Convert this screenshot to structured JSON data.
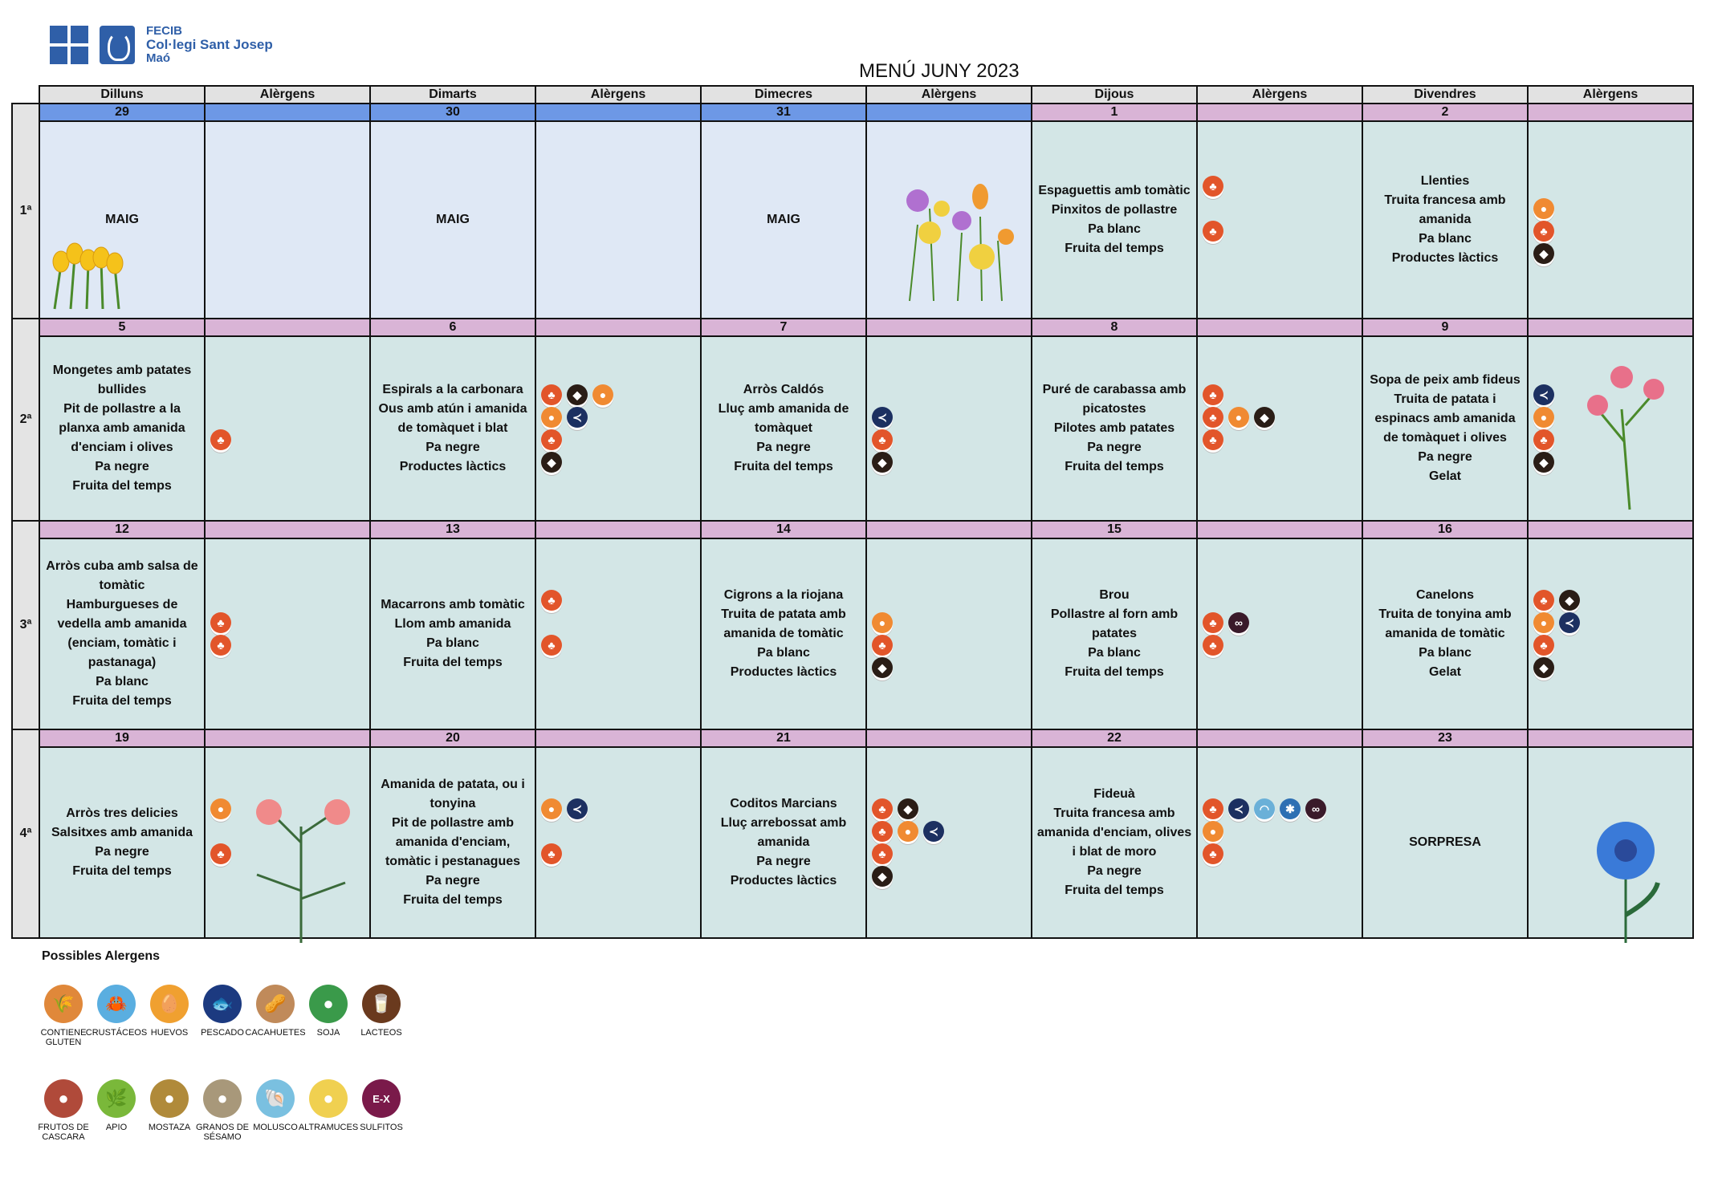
{
  "header": {
    "org": "FECIB",
    "school": "Col·legi Sant Josep",
    "town": "Maó",
    "title": "MENÚ JUNY 2023"
  },
  "columns": [
    "Dilluns",
    "Alèrgens",
    "Dimarts",
    "Alèrgens",
    "Dimecres",
    "Alèrgens",
    "Dijous",
    "Alèrgens",
    "Divendres",
    "Alèrgens"
  ],
  "weeks": [
    {
      "label": "1ª",
      "days": [
        {
          "num": "29",
          "month": "may",
          "dishes": [
            "MAIG"
          ],
          "allergens": []
        },
        {
          "num": "30",
          "month": "may",
          "dishes": [
            "MAIG"
          ],
          "allergens": []
        },
        {
          "num": "31",
          "month": "may",
          "dishes": [
            "MAIG"
          ],
          "allergens": []
        },
        {
          "num": "1",
          "month": "jun",
          "dishes": [
            "Espaguettis amb tomàtic",
            "Pinxitos de pollastre",
            "Pa blanc",
            "Fruita del temps"
          ],
          "allergens": [
            [
              "gluten"
            ],
            [],
            [
              "gluten"
            ],
            []
          ]
        },
        {
          "num": "2",
          "month": "jun",
          "dishes": [
            "Llenties",
            "Truita francesa amb amanida",
            "Pa blanc",
            "Productes làctics"
          ],
          "allergens": [
            [],
            [
              "huevos"
            ],
            [
              "gluten"
            ],
            [
              "lacteos"
            ]
          ]
        }
      ]
    },
    {
      "label": "2ª",
      "days": [
        {
          "num": "5",
          "month": "jun",
          "dishes": [
            "Mongetes amb patates bullides",
            "Pit de pollastre a la planxa amb amanida d'enciam i olives",
            "Pa negre",
            "Fruita del temps"
          ],
          "allergens": [
            [],
            [],
            [
              "gluten"
            ],
            []
          ]
        },
        {
          "num": "6",
          "month": "jun",
          "dishes": [
            "Espirals a la carbonara",
            "Ous amb atún i amanida de tomàquet i blat",
            "Pa negre",
            "Productes làctics"
          ],
          "allergens": [
            [
              "gluten",
              "lacteos",
              "huevos"
            ],
            [
              "huevos",
              "pescado"
            ],
            [
              "gluten"
            ],
            [
              "lacteos"
            ]
          ]
        },
        {
          "num": "7",
          "month": "jun",
          "dishes": [
            "Arròs Caldós",
            "Lluç amb amanida de tomàquet",
            "Pa negre",
            "Fruita del temps"
          ],
          "allergens": [
            [],
            [
              "pescado"
            ],
            [
              "gluten"
            ],
            [
              "lacteos"
            ]
          ]
        },
        {
          "num": "8",
          "month": "jun",
          "dishes": [
            "Puré de carabassa amb picatostes",
            "Pilotes amb patates",
            "Pa negre",
            "Fruita del temps"
          ],
          "allergens": [
            [
              "gluten"
            ],
            [
              "gluten",
              "huevos",
              "lacteos"
            ],
            [
              "gluten"
            ],
            []
          ]
        },
        {
          "num": "9",
          "month": "jun",
          "dishes": [
            "Sopa de peix amb fideus",
            "Truita de patata i espinacs amb amanida de tomàquet i olives",
            "Pa negre",
            "Gelat"
          ],
          "allergens": [
            [
              "pescado"
            ],
            [
              "huevos"
            ],
            [
              "gluten"
            ],
            [
              "lacteos"
            ]
          ]
        }
      ]
    },
    {
      "label": "3ª",
      "days": [
        {
          "num": "12",
          "month": "jun",
          "dishes": [
            "Arròs cuba amb salsa de tomàtic",
            "Hamburgueses de vedella amb amanida (enciam, tomàtic i pastanaga)",
            "Pa blanc",
            "Fruita del temps"
          ],
          "allergens": [
            [],
            [
              "gluten"
            ],
            [
              "gluten"
            ],
            []
          ]
        },
        {
          "num": "13",
          "month": "jun",
          "dishes": [
            "Macarrons amb tomàtic",
            "Llom amb amanida",
            "Pa blanc",
            "Fruita del temps"
          ],
          "allergens": [
            [
              "gluten"
            ],
            [],
            [
              "gluten"
            ],
            []
          ]
        },
        {
          "num": "14",
          "month": "jun",
          "dishes": [
            "Cigrons a la riojana",
            "Truita de patata amb amanida de tomàtic",
            "Pa blanc",
            "Productes làctics"
          ],
          "allergens": [
            [],
            [
              "huevos"
            ],
            [
              "gluten"
            ],
            [
              "lacteos"
            ]
          ]
        },
        {
          "num": "15",
          "month": "jun",
          "dishes": [
            "Brou",
            "Pollastre al forn amb patates",
            "Pa blanc",
            "Fruita del temps"
          ],
          "allergens": [
            [],
            [
              "gluten",
              "sulfitos"
            ],
            [
              "gluten"
            ],
            []
          ]
        },
        {
          "num": "16",
          "month": "jun",
          "dishes": [
            "Canelons",
            "Truita de tonyina amb amanida de tomàtic",
            "Pa blanc",
            "Gelat"
          ],
          "allergens": [
            [
              "gluten",
              "lacteos"
            ],
            [
              "huevos",
              "pescado"
            ],
            [
              "gluten"
            ],
            [
              "lacteos"
            ]
          ]
        }
      ]
    },
    {
      "label": "4ª",
      "days": [
        {
          "num": "19",
          "month": "jun",
          "dishes": [
            "Arròs tres delicies",
            "Salsitxes amb amanida",
            "Pa negre",
            "Fruita del temps"
          ],
          "allergens": [
            [
              "huevos"
            ],
            [],
            [
              "gluten"
            ],
            []
          ]
        },
        {
          "num": "20",
          "month": "jun",
          "dishes": [
            "Amanida de patata, ou i tonyina",
            "Pit de pollastre amb amanida d'enciam, tomàtic i pestanagues",
            "Pa negre",
            "Fruita del temps"
          ],
          "allergens": [
            [
              "huevos",
              "pescado"
            ],
            [],
            [
              "gluten"
            ],
            []
          ]
        },
        {
          "num": "21",
          "month": "jun",
          "dishes": [
            "Coditos Marcians",
            "Lluç arrebossat amb amanida",
            "Pa negre",
            "Productes làctics"
          ],
          "allergens": [
            [
              "gluten",
              "lacteos"
            ],
            [
              "gluten",
              "huevos",
              "pescado"
            ],
            [
              "gluten"
            ],
            [
              "lacteos"
            ]
          ]
        },
        {
          "num": "22",
          "month": "jun",
          "dishes": [
            "Fideuà",
            "Truita francesa amb amanida d'enciam, olives i blat de moro",
            "Pa negre",
            "Fruita del temps"
          ],
          "allergens": [
            [
              "gluten",
              "pescado",
              "molusco",
              "crustaceos",
              "sulfitos"
            ],
            [
              "huevos"
            ],
            [
              "gluten"
            ],
            []
          ]
        },
        {
          "num": "23",
          "month": "jun",
          "dishes": [
            "SORPRESA"
          ],
          "allergens": []
        }
      ]
    }
  ],
  "legend": {
    "title": "Possibles Alergens",
    "items": [
      {
        "key": "gluten",
        "label": "CONTIENE GLUTEN",
        "color": "#e0883a",
        "glyph": "🌾"
      },
      {
        "key": "crustaceos",
        "label": "CRUSTÁCEOS",
        "color": "#5aaee0",
        "glyph": "🦀"
      },
      {
        "key": "huevos",
        "label": "HUEVOS",
        "color": "#f0a030",
        "glyph": "🥚"
      },
      {
        "key": "pescado",
        "label": "PESCADO",
        "color": "#1c3a80",
        "glyph": "🐟"
      },
      {
        "key": "cacahuetes",
        "label": "CACAHUETES",
        "color": "#c08a5a",
        "glyph": "🥜"
      },
      {
        "key": "soja",
        "label": "SOJA",
        "color": "#3a9a4a",
        "glyph": "●"
      },
      {
        "key": "lacteos",
        "label": "LACTEOS",
        "color": "#6a3a1e",
        "glyph": "🥛"
      },
      {
        "key": "frutos",
        "label": "FRUTOS DE CASCARA",
        "color": "#b04a3a",
        "glyph": "●"
      },
      {
        "key": "apio",
        "label": "APIO",
        "color": "#7ab83a",
        "glyph": "🌿"
      },
      {
        "key": "mostaza",
        "label": "MOSTAZA",
        "color": "#b08a3a",
        "glyph": "●"
      },
      {
        "key": "sesamo",
        "label": "GRANOS DE SÉSAMO",
        "color": "#a8987a",
        "glyph": "●"
      },
      {
        "key": "molusco",
        "label": "MOLUSCO",
        "color": "#7ac0e0",
        "glyph": "🐚"
      },
      {
        "key": "altramuces",
        "label": "ALTRAMUCES",
        "color": "#f0d050",
        "glyph": "●"
      },
      {
        "key": "sulfitos",
        "label": "SULFITOS",
        "color": "#7a1a4a",
        "glyph": "E-X"
      }
    ]
  }
}
